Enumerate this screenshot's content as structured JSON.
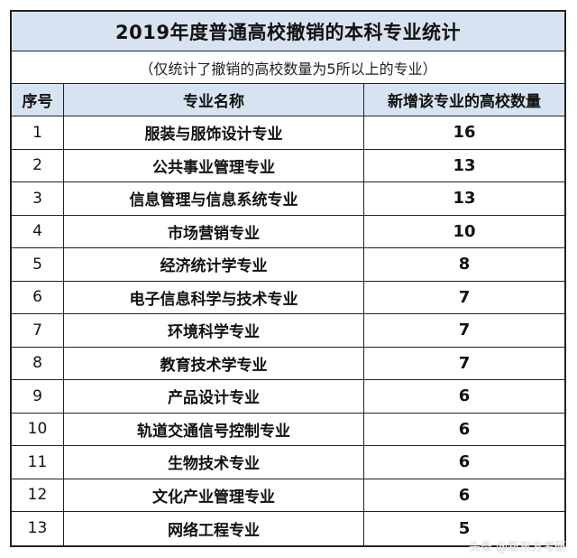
{
  "title": "2019年度普通高校撤销的本科专业统计",
  "subtitle": "（仅统计了撤销的高校数量为5所以上的专业）",
  "headers": {
    "index": "序号",
    "major": "专业名称",
    "count": "新增该专业的高校数量"
  },
  "rows": [
    {
      "index": "1",
      "major": "服装与服饰设计专业",
      "count": "16"
    },
    {
      "index": "2",
      "major": "公共事业管理专业",
      "count": "13"
    },
    {
      "index": "3",
      "major": "信息管理与信息系统专业",
      "count": "13"
    },
    {
      "index": "4",
      "major": "市场营销专业",
      "count": "10"
    },
    {
      "index": "5",
      "major": "经济统计学专业",
      "count": "8"
    },
    {
      "index": "6",
      "major": "电子信息科学与技术专业",
      "count": "7"
    },
    {
      "index": "7",
      "major": "环境科学专业",
      "count": "7"
    },
    {
      "index": "8",
      "major": "教育技术学专业",
      "count": "7"
    },
    {
      "index": "9",
      "major": "产品设计专业",
      "count": "6"
    },
    {
      "index": "10",
      "major": "轨道交通信号控制专业",
      "count": "6"
    },
    {
      "index": "11",
      "major": "生物技术专业",
      "count": "6"
    },
    {
      "index": "12",
      "major": "文化产业管理专业",
      "count": "6"
    },
    {
      "index": "13",
      "major": "网络工程专业",
      "count": "5"
    }
  ],
  "watermark": "头条 @新东方考研"
}
